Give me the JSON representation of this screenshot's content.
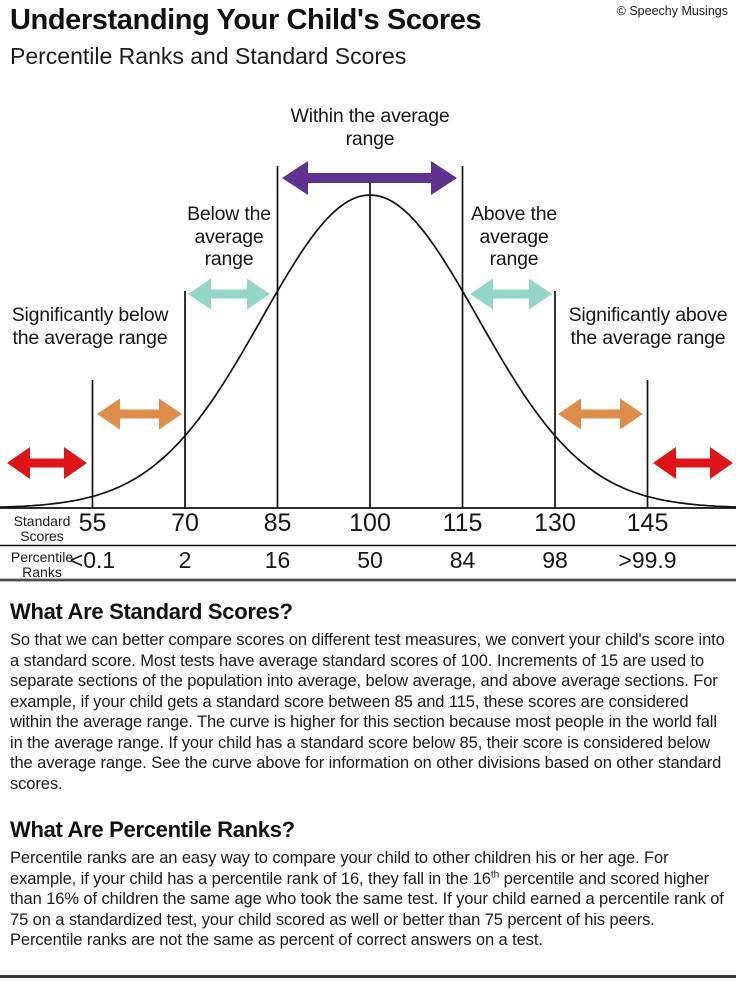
{
  "page": {
    "copyright": "© Speechy Musings",
    "title": "Understanding Your Child's Scores",
    "subtitle": "Percentile Ranks and Standard Scores"
  },
  "chart_data": {
    "type": "line",
    "description": "Normal distribution bell curve of standard scores with labeled score ranges",
    "distribution": {
      "mean": 100,
      "sd": 15,
      "visible_score_range": [
        40,
        160
      ]
    },
    "tick_scores": [
      55,
      70,
      85,
      100,
      115,
      130,
      145
    ],
    "axis_rows": [
      {
        "label": "Standard\nScores",
        "values": [
          "55",
          "70",
          "85",
          "100",
          "115",
          "130",
          "145"
        ]
      },
      {
        "label": "Percentile\nRanks",
        "values": [
          "<0.1",
          "2",
          "16",
          "50",
          "84",
          "98",
          ">99.9"
        ]
      }
    ],
    "ranges": [
      {
        "id": "within",
        "label": "Within the average range",
        "score_from": 85,
        "score_to": 115,
        "color": "#5f3191"
      },
      {
        "id": "below",
        "label": "Below the average range",
        "score_from": 70,
        "score_to": 85,
        "color": "#93d5c7"
      },
      {
        "id": "above",
        "label": "Above the average range",
        "score_from": 115,
        "score_to": 130,
        "color": "#93d5c7"
      },
      {
        "id": "sig-below",
        "label": "Significantly below the average range",
        "score_from": 55,
        "score_to": 70,
        "color": "#dd8c4a"
      },
      {
        "id": "sig-above",
        "label": "Significantly above the average range",
        "score_from": 130,
        "score_to": 145,
        "color": "#dd8c4a"
      },
      {
        "id": "extreme-low",
        "label": "",
        "score_from": null,
        "score_to": 55,
        "color": "#df1418"
      },
      {
        "id": "extreme-high",
        "label": "",
        "score_from": 145,
        "score_to": null,
        "color": "#df1418"
      }
    ],
    "line_color": "#111111",
    "legend_position": "none",
    "grid": false
  },
  "sections": [
    {
      "heading": "What Are Standard Scores?",
      "paragraph": "So that we can better compare scores on different test measures, we convert your child's score into a standard score. Most tests have average standard scores of 100. Increments of 15 are used to separate sections of the population into average, below average, and above average sections. For example, if your child gets a standard score between 85 and 115, these scores are considered within the average range. The curve is higher for this section because most people in the world fall in the average range. If your child has a standard score below 85, their score is considered below the average range. See the curve above for information on other divisions based on other standard scores."
    },
    {
      "heading": "What Are Percentile Ranks?",
      "paragraph_rich": [
        {
          "t": "Percentile ranks are an easy way to compare your child to other children his or her age. For example, if your child has a percentile rank of 16, they fall in the 16"
        },
        {
          "t": "th",
          "sup": true
        },
        {
          "t": " percentile and scored higher than 16% of children the same age who took the same test. If your child earned a percentile rank of 75 on a standardized test, your child scored as well or better than 75 percent of his peers. Percentile ranks are not the same as percent of correct answers on a test."
        }
      ]
    }
  ]
}
